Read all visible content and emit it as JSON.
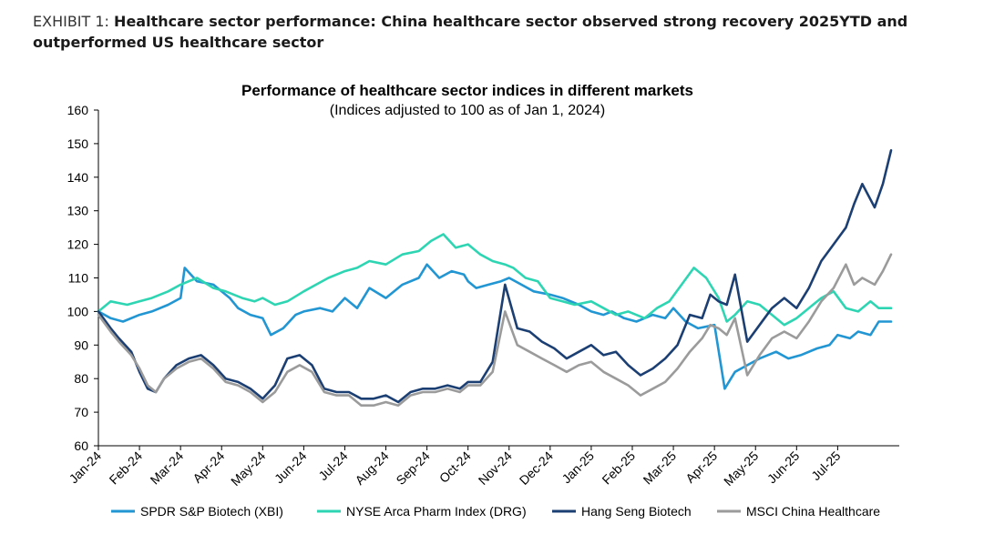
{
  "exhibit": {
    "label": "EXHIBIT 1:",
    "title": "Healthcare sector performance: China healthcare sector observed strong recovery 2025YTD and outperformed US healthcare sector"
  },
  "chart_data": {
    "type": "line",
    "title": "Performance of healthcare sector indices in different markets",
    "subtitle": "(Indices adjusted to 100 as of Jan 1, 2024)",
    "xlabel": "",
    "ylabel": "",
    "ylim": [
      60,
      160
    ],
    "yticks": [
      "60",
      "70",
      "80",
      "90",
      "100",
      "110",
      "120",
      "130",
      "140",
      "150",
      "160"
    ],
    "x_range": [
      0,
      19.5
    ],
    "categories": [
      "Jan-24",
      "Feb-24",
      "Mar-24",
      "Apr-24",
      "May-24",
      "Jun-24",
      "Jul-24",
      "Aug-24",
      "Sep-24",
      "Oct-24",
      "Nov-24",
      "Dec-24",
      "Jan-25",
      "Feb-25",
      "Mar-25",
      "Apr-25",
      "May-25",
      "Jun-25",
      "Jul-25"
    ],
    "legend_position": "bottom",
    "grid": false,
    "series": [
      {
        "name": "SPDR S&P Biotech (XBI)",
        "color": "#2196d3",
        "x": [
          0,
          0.3,
          0.6,
          1.0,
          1.3,
          1.7,
          2.0,
          2.1,
          2.4,
          2.8,
          3.2,
          3.4,
          3.7,
          4.0,
          4.2,
          4.5,
          4.8,
          5.0,
          5.4,
          5.7,
          6.0,
          6.3,
          6.6,
          7.0,
          7.4,
          7.8,
          8.0,
          8.3,
          8.6,
          8.9,
          9.0,
          9.2,
          9.5,
          9.8,
          10.0,
          10.3,
          10.6,
          11.0,
          11.3,
          11.7,
          12.0,
          12.3,
          12.5,
          12.8,
          13.1,
          13.5,
          13.8,
          14.0,
          14.3,
          14.6,
          15.0,
          15.25,
          15.5,
          15.8,
          16.1,
          16.5,
          16.8,
          17.1,
          17.5,
          17.8,
          18.0,
          18.3,
          18.5,
          18.8,
          19.0,
          19.3
        ],
        "values": [
          100,
          98,
          97,
          99,
          100,
          102,
          104,
          113,
          109,
          108,
          104,
          101,
          99,
          98,
          93,
          95,
          99,
          100,
          101,
          100,
          104,
          101,
          107,
          104,
          108,
          110,
          114,
          110,
          112,
          111,
          109,
          107,
          108,
          109,
          110,
          108,
          106,
          105,
          104,
          102,
          100,
          99,
          100,
          98,
          97,
          99,
          98,
          101,
          97,
          95,
          96,
          77,
          82,
          84,
          86,
          88,
          86,
          87,
          89,
          90,
          93,
          92,
          94,
          93,
          97,
          97
        ]
      },
      {
        "name": "NYSE Arca Pharm Index (DRG)",
        "color": "#2ed5b3",
        "x": [
          0,
          0.3,
          0.7,
          1.0,
          1.3,
          1.7,
          2.0,
          2.4,
          2.8,
          3.1,
          3.5,
          3.8,
          4.0,
          4.3,
          4.6,
          5.0,
          5.3,
          5.6,
          6.0,
          6.3,
          6.6,
          7.0,
          7.4,
          7.8,
          8.1,
          8.4,
          8.7,
          9.0,
          9.3,
          9.6,
          9.9,
          10.1,
          10.4,
          10.7,
          11.0,
          11.3,
          11.6,
          12.0,
          12.3,
          12.6,
          12.9,
          13.3,
          13.6,
          13.9,
          14.2,
          14.5,
          14.8,
          15.1,
          15.3,
          15.5,
          15.8,
          16.1,
          16.4,
          16.7,
          17.0,
          17.3,
          17.6,
          17.9,
          18.2,
          18.5,
          18.8,
          19.0,
          19.3
        ],
        "values": [
          100,
          103,
          102,
          103,
          104,
          106,
          108,
          110,
          107,
          106,
          104,
          103,
          104,
          102,
          103,
          106,
          108,
          110,
          112,
          113,
          115,
          114,
          117,
          118,
          121,
          123,
          119,
          120,
          117,
          115,
          114,
          113,
          110,
          109,
          104,
          103,
          102,
          103,
          101,
          99,
          100,
          98,
          101,
          103,
          108,
          113,
          110,
          104,
          97,
          99,
          103,
          102,
          99,
          96,
          98,
          101,
          104,
          106,
          101,
          100,
          103,
          101,
          101
        ]
      },
      {
        "name": "Hang Seng Biotech",
        "color": "#1c3f73",
        "x": [
          0,
          0.3,
          0.5,
          0.8,
          1.0,
          1.2,
          1.4,
          1.6,
          1.9,
          2.2,
          2.5,
          2.8,
          3.1,
          3.4,
          3.7,
          4.0,
          4.3,
          4.6,
          4.9,
          5.2,
          5.5,
          5.8,
          6.1,
          6.4,
          6.7,
          7.0,
          7.3,
          7.6,
          7.9,
          8.2,
          8.5,
          8.8,
          9.0,
          9.3,
          9.6,
          9.9,
          10.2,
          10.5,
          10.8,
          11.1,
          11.4,
          11.7,
          12.0,
          12.3,
          12.6,
          12.9,
          13.2,
          13.5,
          13.8,
          14.1,
          14.4,
          14.7,
          14.9,
          15.1,
          15.3,
          15.5,
          15.8,
          16.1,
          16.4,
          16.7,
          17.0,
          17.3,
          17.6,
          17.9,
          18.2,
          18.4,
          18.6,
          18.9,
          19.1,
          19.3
        ],
        "values": [
          100,
          95,
          92,
          88,
          82,
          77,
          76,
          80,
          84,
          86,
          87,
          84,
          80,
          79,
          77,
          74,
          78,
          86,
          87,
          84,
          77,
          76,
          76,
          74,
          74,
          75,
          73,
          76,
          77,
          77,
          78,
          77,
          79,
          79,
          85,
          108,
          95,
          94,
          91,
          89,
          86,
          88,
          90,
          87,
          88,
          84,
          81,
          83,
          86,
          90,
          99,
          98,
          105,
          103,
          102,
          111,
          91,
          96,
          101,
          104,
          101,
          107,
          115,
          120,
          125,
          132,
          138,
          131,
          138,
          148
        ]
      },
      {
        "name": "MSCI China Healthcare",
        "color": "#9b9b9b",
        "x": [
          0,
          0.3,
          0.5,
          0.8,
          1.0,
          1.2,
          1.4,
          1.6,
          1.9,
          2.2,
          2.5,
          2.8,
          3.1,
          3.4,
          3.7,
          4.0,
          4.3,
          4.6,
          4.9,
          5.2,
          5.5,
          5.8,
          6.1,
          6.4,
          6.7,
          7.0,
          7.3,
          7.6,
          7.9,
          8.2,
          8.5,
          8.8,
          9.0,
          9.3,
          9.6,
          9.9,
          10.2,
          10.5,
          10.8,
          11.1,
          11.4,
          11.7,
          12.0,
          12.3,
          12.6,
          12.9,
          13.2,
          13.5,
          13.8,
          14.1,
          14.4,
          14.7,
          14.9,
          15.1,
          15.3,
          15.5,
          15.8,
          16.1,
          16.4,
          16.7,
          17.0,
          17.3,
          17.6,
          17.9,
          18.2,
          18.4,
          18.6,
          18.9,
          19.1,
          19.3
        ],
        "values": [
          99,
          94,
          91,
          87,
          83,
          78,
          76,
          80,
          83,
          85,
          86,
          83,
          79,
          78,
          76,
          73,
          76,
          82,
          84,
          82,
          76,
          75,
          75,
          72,
          72,
          73,
          72,
          75,
          76,
          76,
          77,
          76,
          78,
          78,
          82,
          100,
          90,
          88,
          86,
          84,
          82,
          84,
          85,
          82,
          80,
          78,
          75,
          77,
          79,
          83,
          88,
          92,
          96,
          95,
          93,
          98,
          81,
          87,
          92,
          94,
          92,
          97,
          103,
          107,
          114,
          108,
          110,
          108,
          112,
          117
        ]
      }
    ]
  }
}
